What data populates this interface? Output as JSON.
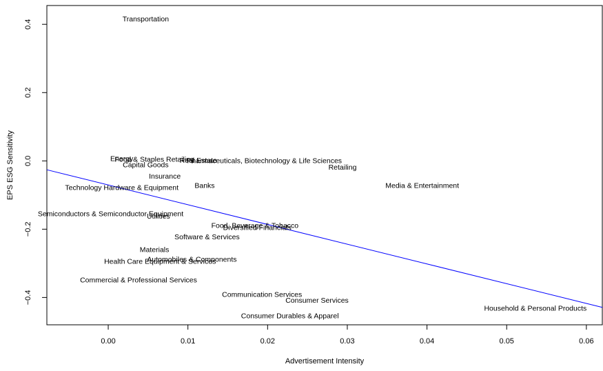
{
  "chart_data": {
    "type": "scatter",
    "title": "",
    "xlabel": "Advertisement Intensity",
    "ylabel": "EPS ESG Sensitivity",
    "xlim": [
      -0.0077,
      0.062
    ],
    "ylim": [
      -0.48,
      0.455
    ],
    "x_ticks": [
      0.0,
      0.01,
      0.02,
      0.03,
      0.04,
      0.05,
      0.06
    ],
    "x_tick_labels": [
      "0.00",
      "0.01",
      "0.02",
      "0.03",
      "0.04",
      "0.05",
      "0.06"
    ],
    "y_ticks": [
      -0.4,
      -0.2,
      0.0,
      0.2,
      0.4
    ],
    "y_tick_labels": [
      "−0.4",
      "−0.2",
      "0.0",
      "0.2",
      "0.4"
    ],
    "grid": false,
    "legend": "none",
    "marker": "text-label",
    "points": [
      {
        "label": "Transportation",
        "x": 0.0047,
        "y": 0.415
      },
      {
        "label": "Energy",
        "x": 0.0017,
        "y": 0.006
      },
      {
        "label": "Food & Staples Retailing",
        "x": 0.0058,
        "y": 0.004
      },
      {
        "label": "Real Estate",
        "x": 0.0113,
        "y": 0.001
      },
      {
        "label": "Pharmaceuticals, Biotechnology & Life Sciences",
        "x": 0.0196,
        "y": 0.0
      },
      {
        "label": "Capital Goods",
        "x": 0.0047,
        "y": -0.013
      },
      {
        "label": "Retailing",
        "x": 0.0294,
        "y": -0.02
      },
      {
        "label": "Insurance",
        "x": 0.0071,
        "y": -0.046
      },
      {
        "label": "Media & Entertainment",
        "x": 0.0394,
        "y": -0.073
      },
      {
        "label": "Banks",
        "x": 0.0121,
        "y": -0.073
      },
      {
        "label": "Technology Hardware & Equipment",
        "x": 0.0017,
        "y": -0.079
      },
      {
        "label": "Semiconductors & Semiconductor Equipment",
        "x": 0.0003,
        "y": -0.156
      },
      {
        "label": "Utilities",
        "x": 0.0063,
        "y": -0.163
      },
      {
        "label": "Food, Beverage & Tobacco",
        "x": 0.0184,
        "y": -0.19
      },
      {
        "label": "Diversified Financials",
        "x": 0.0187,
        "y": -0.196
      },
      {
        "label": "Software & Services",
        "x": 0.0124,
        "y": -0.224
      },
      {
        "label": "Materials",
        "x": 0.0058,
        "y": -0.261
      },
      {
        "label": "Automobiles & Components",
        "x": 0.0105,
        "y": -0.289
      },
      {
        "label": "Health Care Equipment & Services",
        "x": 0.0065,
        "y": -0.295
      },
      {
        "label": "Commercial & Professional Services",
        "x": 0.0038,
        "y": -0.35
      },
      {
        "label": "Communication Services",
        "x": 0.0193,
        "y": -0.392
      },
      {
        "label": "Consumer Services",
        "x": 0.0262,
        "y": -0.409
      },
      {
        "label": "Household & Personal Products",
        "x": 0.0536,
        "y": -0.433
      },
      {
        "label": "Consumer Durables & Apparel",
        "x": 0.0228,
        "y": -0.455
      }
    ],
    "fit_line": {
      "color": "#0000ff",
      "x": [
        -0.0077,
        0.062
      ],
      "y": [
        -0.026,
        -0.429
      ]
    }
  }
}
